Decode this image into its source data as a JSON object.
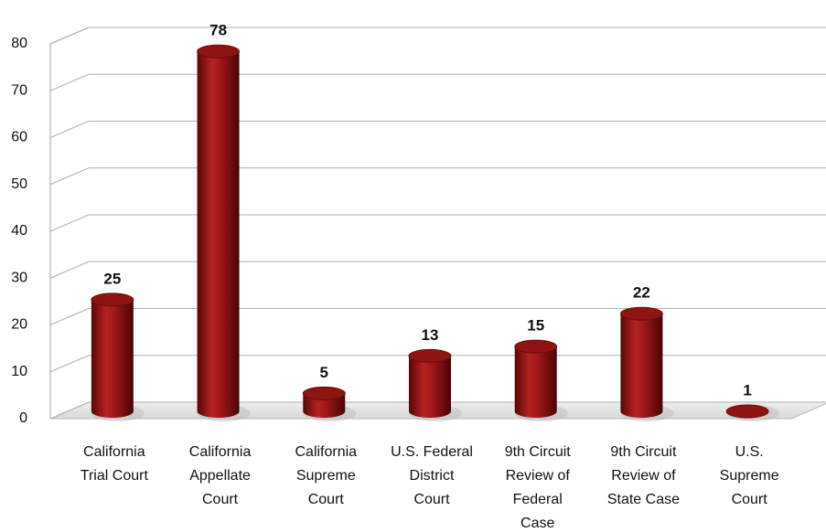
{
  "chart_data": {
    "type": "bar",
    "categories": [
      "California\nTrial Court",
      "California\nAppellate\nCourt",
      "California\nSupreme\nCourt",
      "U.S. Federal\nDistrict\nCourt",
      "9th Circuit\nReview of\nFederal\nCase",
      "9th Circuit\nReview of\nState Case",
      "U.S.\nSupreme\nCourt"
    ],
    "values": [
      25,
      78,
      5,
      13,
      15,
      22,
      1
    ],
    "color": "#8e1414",
    "ylim": [
      0,
      80
    ],
    "yticks": [
      0,
      10,
      20,
      30,
      40,
      50,
      60,
      70,
      80
    ],
    "grid": true
  }
}
